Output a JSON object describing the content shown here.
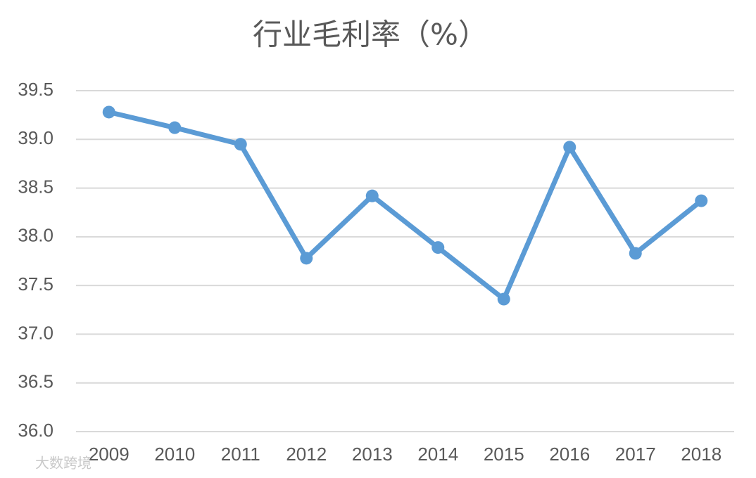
{
  "chart_data": {
    "type": "line",
    "title": "行业毛利率（%）",
    "categories": [
      "2009",
      "2010",
      "2011",
      "2012",
      "2013",
      "2014",
      "2015",
      "2016",
      "2017",
      "2018"
    ],
    "values": [
      39.28,
      39.12,
      38.95,
      37.78,
      38.42,
      37.89,
      37.36,
      38.92,
      37.83,
      38.37
    ],
    "color": "#5b9bd5",
    "ylim": [
      36,
      39.5
    ],
    "yticks": [
      {
        "value": 36,
        "label": "36.0"
      },
      36.5,
      {
        "value": 37,
        "label": "37.0"
      },
      37.5,
      {
        "value": 38,
        "label": "38.0"
      },
      38.5,
      {
        "value": 39,
        "label": "39.0"
      },
      39.5
    ],
    "grid": true
  },
  "watermark": "大数跨境"
}
